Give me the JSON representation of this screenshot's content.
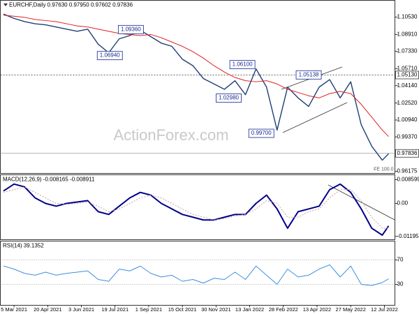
{
  "chart_data": [
    {
      "type": "line",
      "title": "EURCHF,Daily 0.97630 0.97950 0.97602 0.97836",
      "watermark": "ActionForex.com",
      "texts": [
        "FE 100.0"
      ],
      "x": [
        0,
        10,
        20,
        30,
        40,
        50,
        60,
        70,
        80,
        90,
        100,
        110,
        120,
        130,
        140,
        150,
        160,
        170,
        180,
        190,
        200,
        210,
        220,
        230,
        240,
        250,
        260,
        270,
        280,
        290,
        300,
        310,
        320,
        330,
        340,
        350,
        360,
        366
      ],
      "xlim": [
        -3,
        372
      ],
      "ylim": [
        0.9597,
        1.1208
      ],
      "yticks": [
        {
          "value": 1.1053,
          "label": "1.10530"
        },
        {
          "value": 1.0891,
          "label": "1.08910"
        },
        {
          "value": 1.0733,
          "label": "1.07330"
        },
        {
          "value": 1.0571,
          "label": "1.05710"
        },
        {
          "value": 1.0414,
          "label": "1.04140"
        },
        {
          "value": 1.0252,
          "label": "1.02520"
        },
        {
          "value": 1.0094,
          "label": "1.00940"
        },
        {
          "value": 0.9937,
          "label": "0.99370"
        },
        0.96175
      ],
      "series": [
        {
          "color": "#1f3f75",
          "width": 1.4,
          "values": [
            1.108,
            1.104,
            1.101,
            1.099,
            1.098,
            1.096,
            1.094,
            1.092,
            1.094,
            1.08,
            1.072,
            1.085,
            1.088,
            1.093,
            1.087,
            1.081,
            1.078,
            1.066,
            1.06,
            1.048,
            1.043,
            1.038,
            1.046,
            1.033,
            1.057,
            1.04,
            1.0,
            1.04,
            1.03,
            1.022,
            1.04,
            1.047,
            1.03,
            1.045,
            1.005,
            0.985,
            0.972,
            0.978
          ]
        },
        {
          "color": "#e02020",
          "width": 1,
          "values": [
            1.107,
            1.106,
            1.105,
            1.103,
            1.102,
            1.101,
            1.099,
            1.097,
            1.096,
            1.094,
            1.092,
            1.09,
            1.089,
            1.088,
            1.089,
            1.086,
            1.082,
            1.078,
            1.073,
            1.067,
            1.06,
            1.054,
            1.049,
            1.046,
            1.045,
            1.046,
            1.043,
            1.038,
            1.035,
            1.032,
            1.03,
            1.034,
            1.036,
            1.034,
            1.024,
            1.012,
            1.0,
            0.994
          ]
        }
      ],
      "levels": [
        {
          "value": 1.0513,
          "label": "1.05130",
          "style": "dashed"
        },
        {
          "value": 0.97836,
          "label": "0.97836",
          "style": "solid"
        }
      ],
      "annotations": [
        {
          "label": "1.09360",
          "value": 1.0936,
          "x": 133
        },
        {
          "label": "1.06940",
          "value": 1.0694,
          "x": 113
        },
        {
          "label": "1.06100",
          "value": 1.061,
          "x": 239
        },
        {
          "label": "1.02980",
          "value": 1.0298,
          "x": 226
        },
        {
          "label": "0.99700",
          "value": 0.997,
          "x": 257
        },
        {
          "label": "1.05138",
          "value": 1.05138,
          "x": 302
        }
      ]
    },
    {
      "type": "line",
      "title": "MACD(12,26,9) -0.008165 -0.008911",
      "x": [
        0,
        10,
        20,
        30,
        40,
        50,
        60,
        70,
        80,
        90,
        100,
        110,
        120,
        130,
        140,
        150,
        160,
        170,
        180,
        190,
        200,
        210,
        220,
        230,
        240,
        250,
        260,
        270,
        280,
        290,
        300,
        310,
        320,
        330,
        340,
        350,
        360,
        366
      ],
      "xlim": [
        -3,
        372
      ],
      "ylim": [
        -0.01315,
        0.01037
      ],
      "yticks": [
        0.008599,
        {
          "value": 0,
          "label": "0.00"
        },
        -0.011958
      ],
      "series": [
        {
          "color": "#00008b",
          "width": 2,
          "values": [
            0.0045,
            0.007,
            0.006,
            0.002,
            0.0,
            -0.001,
            0.0,
            0.0005,
            0.001,
            -0.003,
            -0.004,
            -0.001,
            0.002,
            0.004,
            0.003,
            0.0,
            -0.002,
            -0.004,
            -0.005,
            -0.006,
            -0.006,
            -0.005,
            -0.004,
            -0.004,
            0.0,
            0.003,
            -0.002,
            -0.009,
            -0.003,
            -0.002,
            -0.001,
            0.005,
            0.007,
            0.004,
            -0.002,
            -0.009,
            -0.0115,
            -0.008165
          ]
        },
        {
          "color": "#c8a0a0",
          "width": 1,
          "dash": true,
          "values": [
            0.004,
            0.005,
            0.006,
            0.004,
            0.002,
            0.0,
            -0.0003,
            0.0,
            0.0005,
            -0.001,
            -0.003,
            -0.002,
            0.0,
            0.002,
            0.003,
            0.002,
            0.0,
            -0.002,
            -0.004,
            -0.005,
            -0.006,
            -0.0055,
            -0.0045,
            -0.004,
            -0.002,
            0.001,
            0.0,
            -0.005,
            -0.005,
            -0.003,
            -0.002,
            0.002,
            0.005,
            0.005,
            0.001,
            -0.005,
            -0.009,
            -0.008911
          ]
        }
      ]
    },
    {
      "type": "line",
      "title": "RSI(14) 39.1352",
      "x": [
        0,
        10,
        20,
        30,
        40,
        50,
        60,
        70,
        80,
        90,
        100,
        110,
        120,
        130,
        140,
        150,
        160,
        170,
        180,
        190,
        200,
        210,
        220,
        230,
        240,
        250,
        260,
        270,
        280,
        290,
        300,
        310,
        320,
        330,
        340,
        350,
        360,
        366
      ],
      "xlim": [
        -3,
        372
      ],
      "ylim": [
        -4.3,
        100.9
      ],
      "yticks": [
        70,
        30
      ],
      "grid": true,
      "xticks": [
        {
          "value": 10,
          "label": "5 Mar 2021"
        },
        {
          "value": 42,
          "label": "20 Apr 2021"
        },
        {
          "value": 74,
          "label": "3 Jun 2021"
        },
        {
          "value": 106,
          "label": "19 Jul 2021"
        },
        {
          "value": 138,
          "label": "1 Sep 2021"
        },
        {
          "value": 170,
          "label": "15 Oct 2021"
        },
        {
          "value": 202,
          "label": "30 Nov 2021"
        },
        {
          "value": 234,
          "label": "13 Jan 2022"
        },
        {
          "value": 266,
          "label": "28 Feb 2022"
        },
        {
          "value": 298,
          "label": "13 Apr 2022"
        },
        {
          "value": 330,
          "label": "27 May 2022"
        },
        {
          "value": 362,
          "label": "12 Jul 2022"
        }
      ],
      "series": [
        {
          "color": "#3d8fe0",
          "width": 1,
          "values": [
            60,
            55,
            48,
            45,
            50,
            45,
            48,
            50,
            52,
            38,
            35,
            55,
            52,
            60,
            48,
            42,
            45,
            35,
            38,
            32,
            40,
            38,
            50,
            38,
            60,
            45,
            30,
            55,
            42,
            45,
            55,
            62,
            42,
            60,
            30,
            28,
            33,
            39.1352
          ]
        }
      ]
    }
  ]
}
